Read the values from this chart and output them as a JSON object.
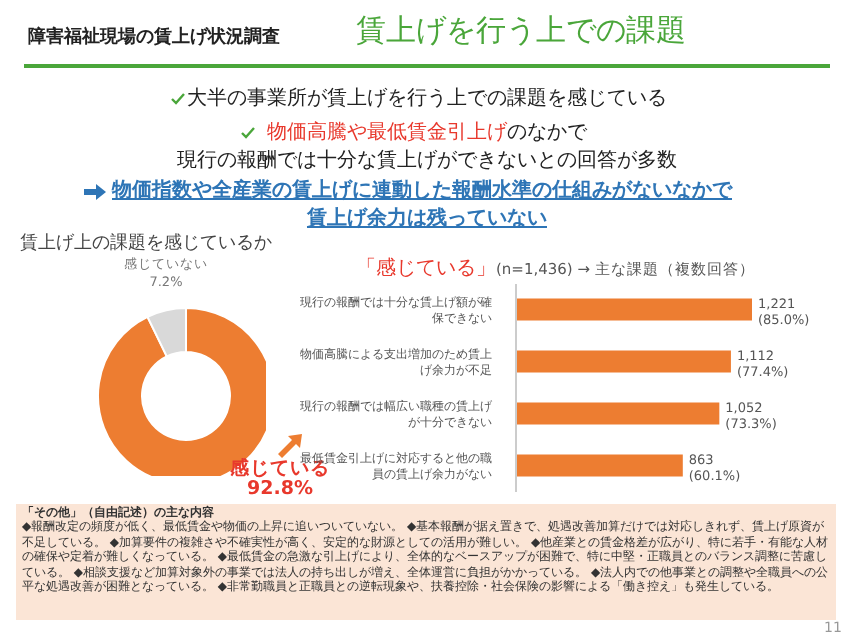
{
  "chart_data": [
    {
      "type": "other",
      "title": "賃上げを行う上での課題",
      "subtitle": "障害福祉現場の賃上げ状況調査",
      "annotations": [
        "大半の事業所が賃上げを行う上での課題を感じている",
        "物価高騰や最低賃金引上げ",
        "のなかで",
        "現行の報酬では十分な賃上げができないとの回答が多数",
        "物価指数や全産業の賃上げに連動した報酬水準の仕組みがないなかで",
        "賃上げ余力は残っていない"
      ]
    },
    {
      "type": "donut",
      "title": "賃上げ上の課題を感じているか",
      "categories": [
        "感じている",
        "感じていない"
      ],
      "values": [
        92.8,
        7.2
      ],
      "colors": [
        "#ed7d31",
        "#d9d9d9"
      ],
      "value_labels": [
        "92.8%",
        "7.2%"
      ]
    },
    {
      "type": "bar",
      "orientation": "horizontal",
      "title": "「感じている」",
      "subtitle": "(n=1,436) → 主な課題（複数回答）",
      "categories": [
        "現行の報酬では十分な賃上げ額が確保できない",
        "物価高騰による支出増加のため賃上げ余力が不足",
        "現行の報酬では幅広い職種の賃上げが十分できない",
        "最低賃金引上げに対応すると他の職員の賃上げ余力がない"
      ],
      "values": [
        1221,
        1112,
        1052,
        863
      ],
      "color": "#ed7d31",
      "value_labels": [
        "1,221\n(85.0%)",
        "1,112\n(77.4%)",
        "1,052\n(73.3%)",
        "863\n(60.1%)"
      ],
      "tick_labels": "y"
    },
    {
      "type": "other",
      "title": "「その他」（自由記述）の主な内容",
      "annotations": [
        "◆報酬改定の頻度が低く、最低賃金や物価の上昇に追いついていない。",
        "◆基本報酬が据え置きで、処遇改善加算だけでは対応しきれず、賃上げ原資が不足している。",
        "◆加算要件の複雑さや不確実性が高く、安定的な財源としての活用が難しい。",
        "◆他産業との賃金格差が広がり、特に若手・有能な人材の確保や定着が難しくなっている。",
        "◆最低賃金の急激な引上げにより、全体的なベースアップが困難で、特に中堅・正職員とのバランス調整に苦慮している。",
        "◆相談支援など加算対象外の事業では法人の持ち出しが増え、全体運営に負担がかかっている。",
        "◆法人内での他事業との調整や全職員への公平な処遇改善が困難となっている。",
        "◆非常勤職員と正職員との逆転現象や、扶養控除・社会保険の影響による「働き控え」も発生している。",
        "11"
      ]
    }
  ]
}
